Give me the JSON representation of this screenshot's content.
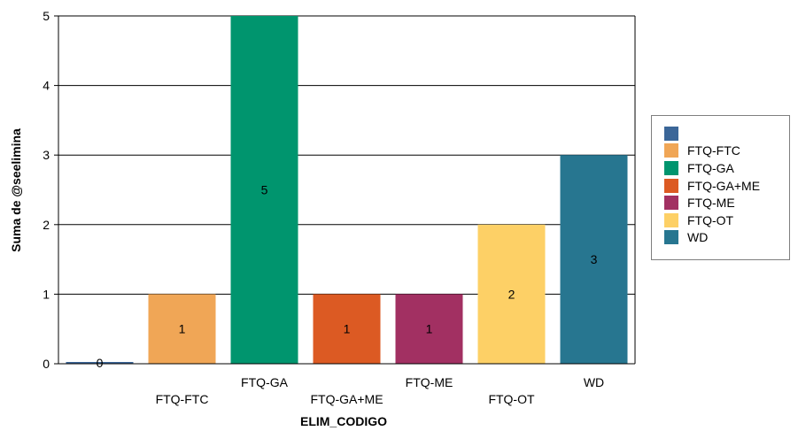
{
  "chart_data": {
    "type": "bar",
    "title": "",
    "xlabel": "ELIM_CODIGO",
    "ylabel": "Suma de @seelimina",
    "ylim": [
      0,
      5
    ],
    "yticks": [
      "0",
      "1",
      "2",
      "3",
      "4",
      "5"
    ],
    "grid": true,
    "legend_position": "right",
    "categories": [
      "",
      "FTQ-FTC",
      "FTQ-GA",
      "FTQ-GA+ME",
      "FTQ-ME",
      "FTQ-OT",
      "WD"
    ],
    "values": [
      0,
      1,
      5,
      1,
      1,
      2,
      3
    ],
    "data_labels": [
      "0",
      "1",
      "5",
      "1",
      "1",
      "2",
      "3"
    ],
    "colors": [
      "#3b6698",
      "#f0a656",
      "#00956e",
      "#dc5a23",
      "#a23062",
      "#fdd066",
      "#277690"
    ]
  },
  "legend": {
    "items": [
      {
        "label": "",
        "color": "#3b6698"
      },
      {
        "label": "FTQ-FTC",
        "color": "#f0a656"
      },
      {
        "label": "FTQ-GA",
        "color": "#00956e"
      },
      {
        "label": "FTQ-GA+ME",
        "color": "#dc5a23"
      },
      {
        "label": "FTQ-ME",
        "color": "#a23062"
      },
      {
        "label": "FTQ-OT",
        "color": "#fdd066"
      },
      {
        "label": "WD",
        "color": "#277690"
      }
    ]
  }
}
